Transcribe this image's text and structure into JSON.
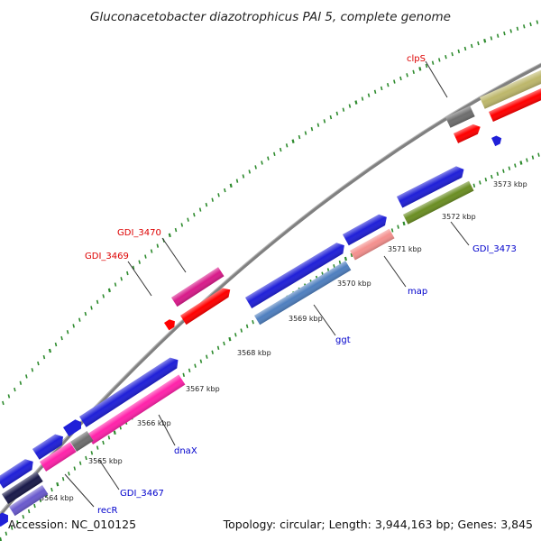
{
  "title": "Gluconacetobacter diazotrophicus PAl 5, complete genome",
  "footer": {
    "accession": "Accession: NC_010125",
    "stats": "Topology: circular; Length: 3,944,163 bp; Genes: 3,845"
  },
  "colors": {
    "backbone": "#808080",
    "tick": "#2e8b2e",
    "label_red": "#dd0000",
    "label_blue": "#0000cc",
    "leader": "#333333"
  },
  "scale_ticks": [
    "3564 kbp",
    "3565 kbp",
    "3566 kbp",
    "3567 kbp",
    "3568 kbp",
    "3569 kbp",
    "3570 kbp",
    "3571 kbp",
    "3572 kbp",
    "3573 kbp"
  ],
  "gene_labels": [
    {
      "text": "clpS",
      "color": "#dd0000"
    },
    {
      "text": "GDI_3470",
      "color": "#dd0000"
    },
    {
      "text": "GDI_3469",
      "color": "#dd0000"
    },
    {
      "text": "GDI_3473",
      "color": "#0000cc"
    },
    {
      "text": "map",
      "color": "#0000cc"
    },
    {
      "text": "ggt",
      "color": "#0000cc"
    },
    {
      "text": "dnaX",
      "color": "#0000cc"
    },
    {
      "text": "GDI_3467",
      "color": "#0000cc"
    },
    {
      "text": "recR",
      "color": "#0000cc"
    }
  ],
  "features": [
    {
      "color": "#d81b8a"
    },
    {
      "color": "#ff0000"
    },
    {
      "color": "#ff0000"
    },
    {
      "color": "#2020d8"
    },
    {
      "color": "#4f7fbf"
    },
    {
      "color": "#2020d8"
    },
    {
      "color": "#f4908e"
    },
    {
      "color": "#2020d8"
    },
    {
      "color": "#6b8e23"
    },
    {
      "color": "#6e6e6e"
    },
    {
      "color": "#ff0000"
    },
    {
      "color": "#2020d8"
    },
    {
      "color": "#bdb76b"
    },
    {
      "color": "#ff0000"
    },
    {
      "color": "#2020d8"
    },
    {
      "color": "#2020d8"
    },
    {
      "color": "#ff22aa"
    },
    {
      "color": "#2020d8"
    },
    {
      "color": "#6e6e6e"
    },
    {
      "color": "#ff22aa"
    },
    {
      "color": "#2020d8"
    },
    {
      "color": "#2020d8"
    },
    {
      "color": "#1a1a4a"
    },
    {
      "color": "#6a5acd"
    }
  ]
}
